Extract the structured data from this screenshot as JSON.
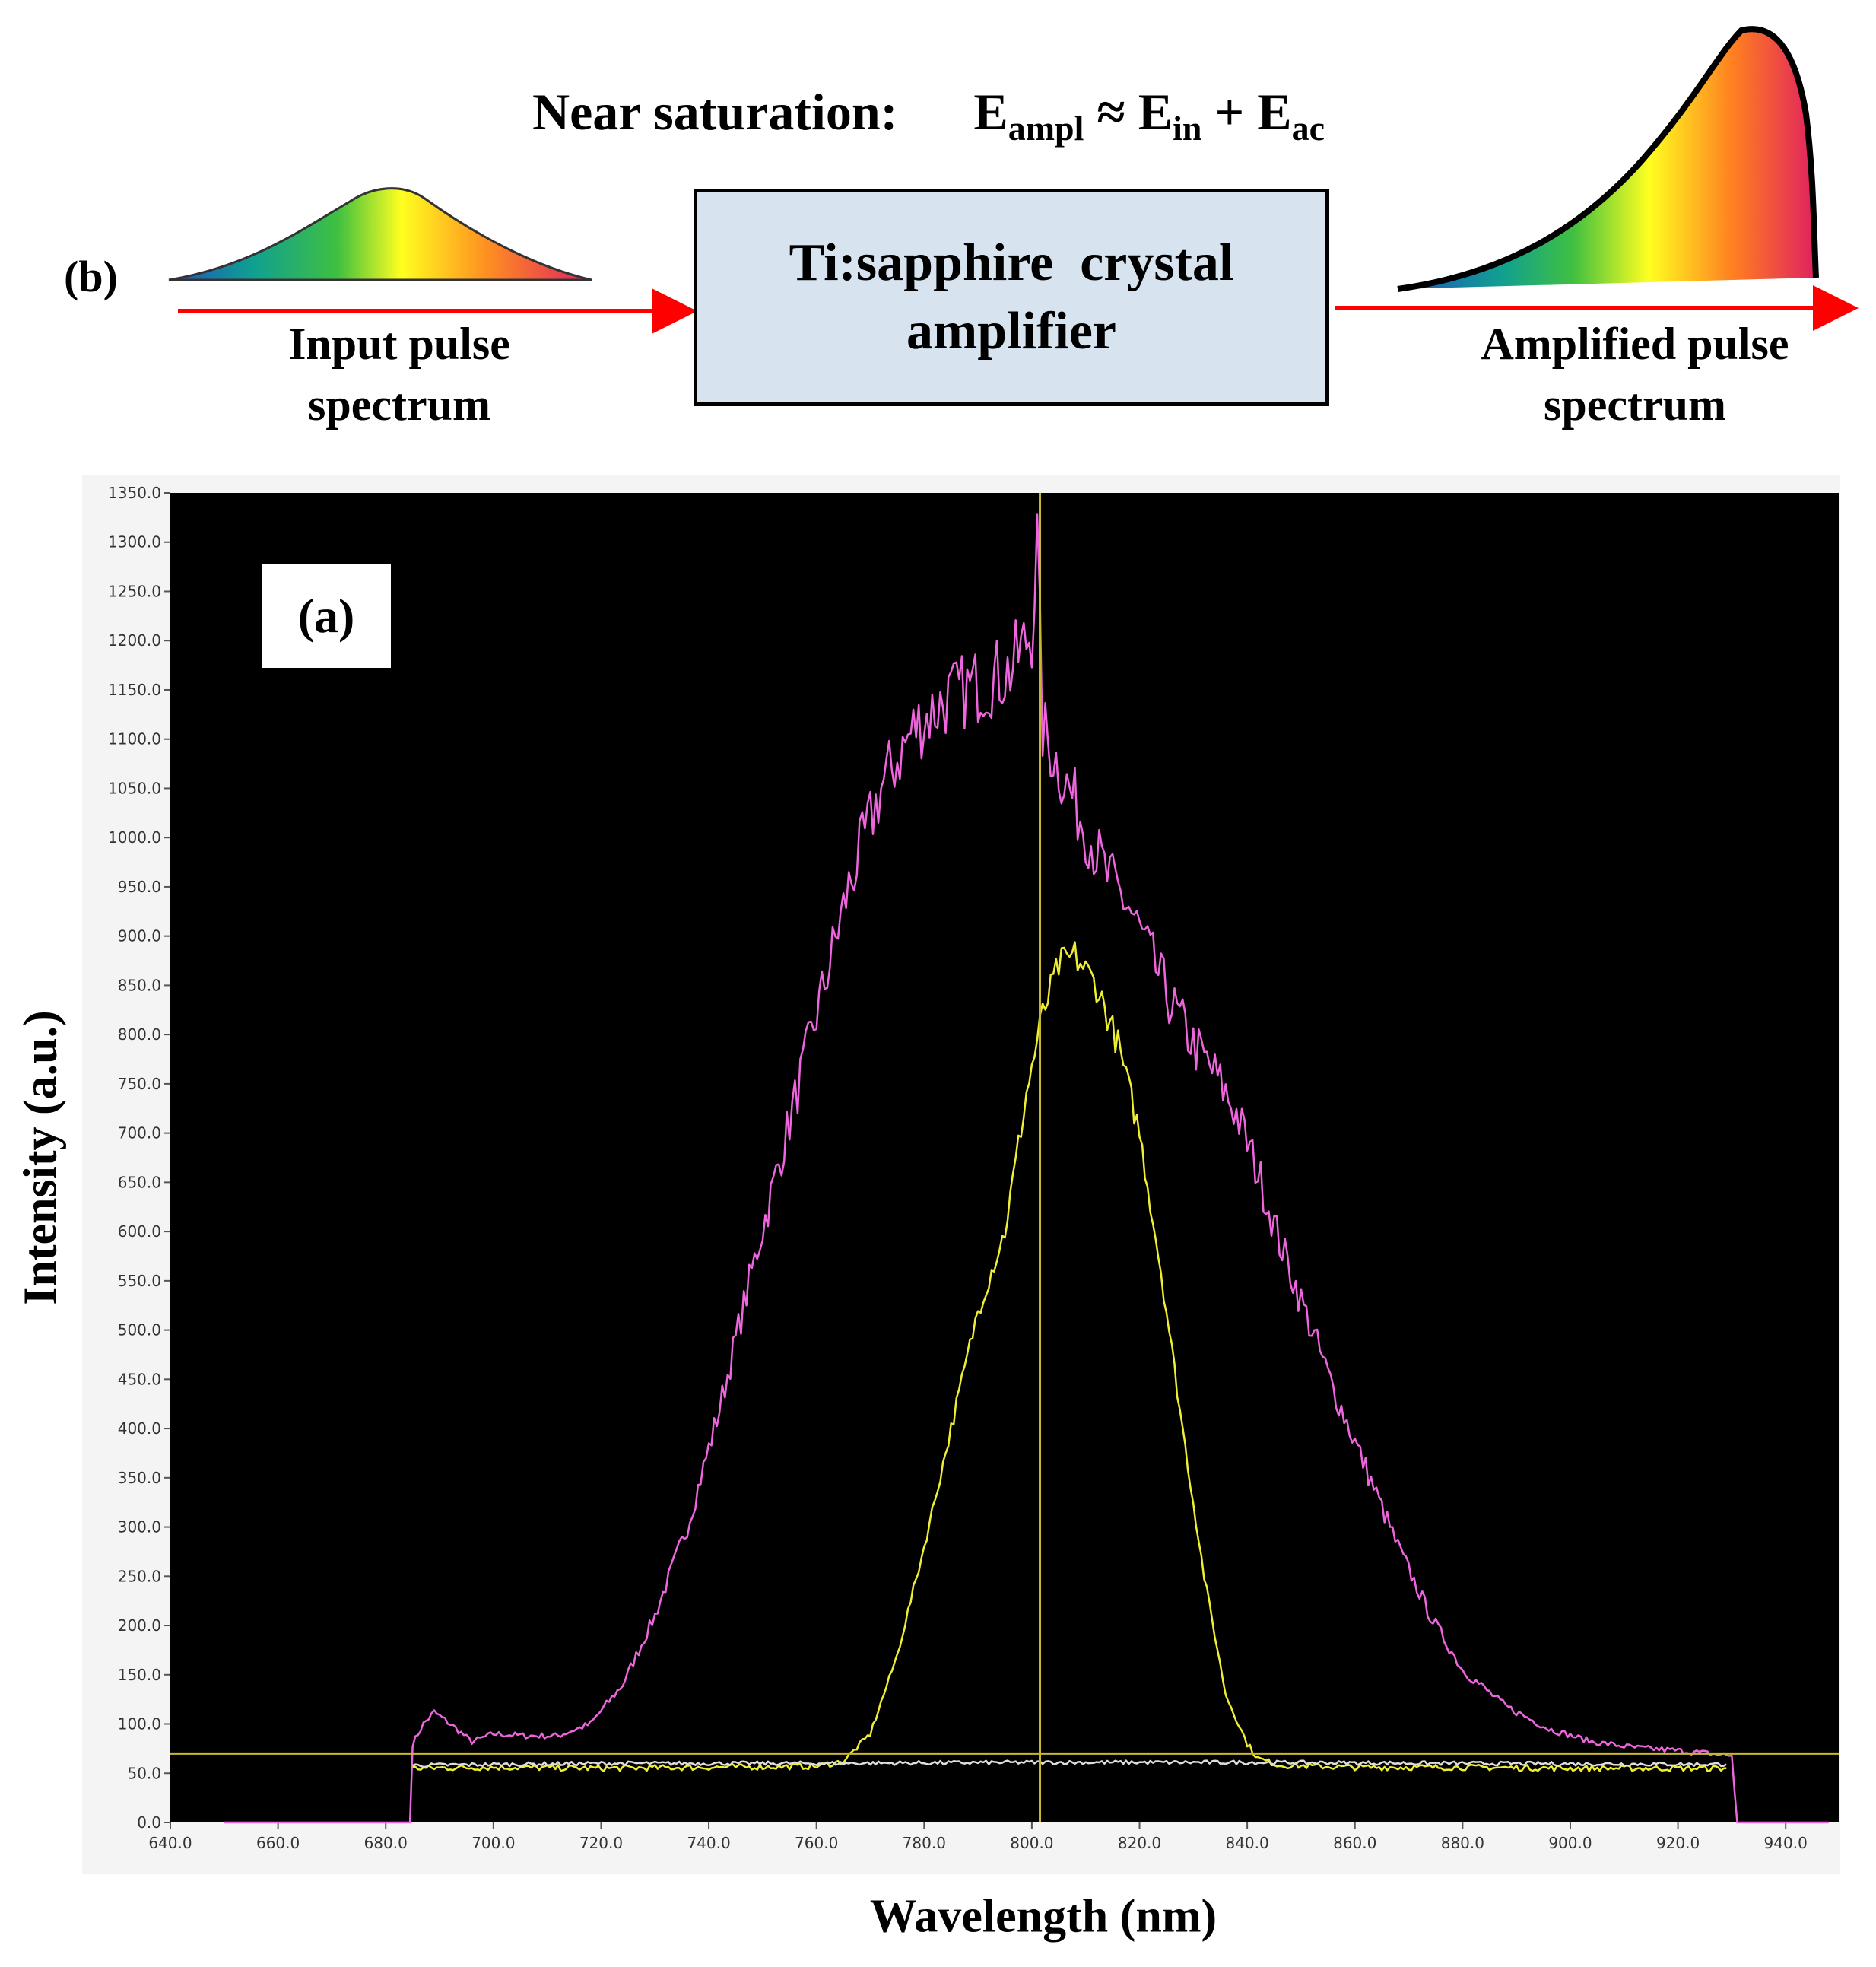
{
  "schematic": {
    "equation": {
      "prefix": "Near saturation:",
      "e1": "E",
      "e1_sub": "ampl",
      "approx": " ≈ ",
      "e2": "E",
      "e2_sub": "in",
      "plus": " + ",
      "e3": "E",
      "e3_sub": "ac"
    },
    "panel_label": "(b)",
    "box_line1": "Ti:sapphire  crystal",
    "box_line2": "amplifier",
    "input_caption_line1": "Input pulse",
    "input_caption_line2": "spectrum",
    "output_caption_line1": "Amplified pulse",
    "output_caption_line2": "spectrum",
    "arrow_color": "#ff0000",
    "box_color": "#d7e4f0"
  },
  "chart_data": {
    "type": "line",
    "panel_label": "(a)",
    "title": "",
    "xlabel": "Wavelength (nm)",
    "ylabel": "Intensity (a.u.)",
    "xlim": [
      640,
      950
    ],
    "ylim": [
      0,
      1350
    ],
    "x_ticks": [
      "640.0",
      "660.0",
      "680.0",
      "700.0",
      "720.0",
      "740.0",
      "760.0",
      "780.0",
      "800.0",
      "820.0",
      "840.0",
      "860.0",
      "880.0",
      "900.0",
      "920.0",
      "940.0"
    ],
    "y_ticks": [
      "0.0",
      "50.0",
      "100.0",
      "150.0",
      "200.0",
      "250.0",
      "300.0",
      "350.0",
      "400.0",
      "450.0",
      "500.0",
      "550.0",
      "600.0",
      "650.0",
      "700.0",
      "750.0",
      "800.0",
      "850.0",
      "900.0",
      "950.0",
      "1000.0",
      "1050.0",
      "1100.0",
      "1150.0",
      "1200.0",
      "1250.0",
      "1300.0",
      "1350.0"
    ],
    "background": "#000000",
    "grid": false,
    "cursor": {
      "x": 801.5,
      "y": 70
    },
    "series": [
      {
        "color": "#ee66dd",
        "x": [
          650,
          684.5,
          685,
          687,
          689,
          692,
          696,
          700,
          706,
          712,
          718,
          724,
          730,
          736,
          742,
          748,
          754,
          760,
          766,
          772,
          778,
          784,
          790,
          796,
          800,
          801,
          802,
          806,
          810,
          814,
          818,
          822,
          826,
          830,
          834,
          838,
          842,
          846,
          850,
          856,
          862,
          868,
          874,
          880,
          888,
          896,
          904,
          912,
          920,
          926,
          930,
          931,
          948
        ],
        "y": [
          0,
          0,
          80,
          100,
          112,
          100,
          82,
          90,
          88,
          88,
          100,
          140,
          210,
          300,
          420,
          560,
          690,
          820,
          950,
          1050,
          1110,
          1140,
          1155,
          1170,
          1210,
          1300,
          1110,
          1060,
          1010,
          960,
          930,
          880,
          830,
          790,
          760,
          720,
          660,
          590,
          530,
          440,
          360,
          280,
          210,
          155,
          118,
          95,
          82,
          76,
          73,
          70,
          68,
          0,
          0
        ]
      },
      {
        "color": "#eeee33",
        "x": [
          685,
          700,
          720,
          740,
          760,
          765,
          770,
          775,
          780,
          785,
          790,
          795,
          799,
          802,
          805,
          808,
          812,
          816,
          820,
          824,
          828,
          832,
          836,
          840,
          842,
          846,
          860,
          880,
          900,
          920,
          929
        ],
        "y": [
          55,
          56,
          55,
          56,
          57,
          62,
          90,
          170,
          280,
          400,
          520,
          600,
          740,
          820,
          870,
          880,
          850,
          790,
          700,
          560,
          400,
          250,
          130,
          80,
          65,
          58,
          56,
          56,
          55,
          55,
          55
        ]
      },
      {
        "color": "#dddddd",
        "x": [
          685,
          720,
          760,
          800,
          840,
          880,
          929
        ],
        "y": [
          58,
          60,
          60,
          61,
          61,
          60,
          59
        ]
      }
    ]
  }
}
